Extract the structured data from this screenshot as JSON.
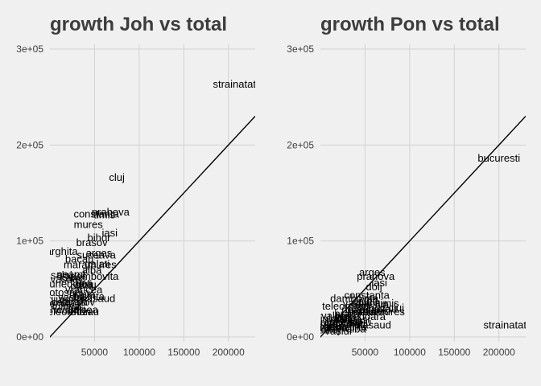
{
  "chart_data": [
    {
      "type": "scatter",
      "title": "growth Joh vs total",
      "xlabel": "",
      "ylabel": "",
      "xlim": [
        0,
        230000
      ],
      "ylim": [
        -5000,
        305000
      ],
      "x_ticks": [
        50000,
        100000,
        150000,
        200000
      ],
      "x_tick_labels": [
        "50000",
        "100000",
        "150000",
        "200000"
      ],
      "y_ticks": [
        0,
        100000,
        200000,
        300000
      ],
      "y_tick_labels": [
        "0e+00",
        "1e+05",
        "2e+05",
        "3e+05"
      ],
      "grid": true,
      "reference_line": "y = x",
      "points": [
        {
          "label": "strainatate",
          "x": 210000,
          "y": 263000
        },
        {
          "label": "cluj",
          "x": 75000,
          "y": 166000
        },
        {
          "label": "prahova",
          "x": 68000,
          "y": 130000
        },
        {
          "label": "constanta",
          "x": 52000,
          "y": 128000
        },
        {
          "label": "timis",
          "x": 61000,
          "y": 127000
        },
        {
          "label": "mures",
          "x": 43000,
          "y": 117000
        },
        {
          "label": "iasi",
          "x": 67000,
          "y": 108000
        },
        {
          "label": "bihor",
          "x": 55000,
          "y": 103000
        },
        {
          "label": "brasov",
          "x": 47000,
          "y": 98000
        },
        {
          "label": "harghita",
          "x": 10000,
          "y": 89000
        },
        {
          "label": "suceava",
          "x": 52000,
          "y": 85000
        },
        {
          "label": "arges",
          "x": 55000,
          "y": 87000
        },
        {
          "label": "bacau",
          "x": 33000,
          "y": 81000
        },
        {
          "label": "maramures",
          "x": 45000,
          "y": 75000
        },
        {
          "label": "galati",
          "x": 53000,
          "y": 76000
        },
        {
          "label": "alba",
          "x": 47000,
          "y": 69000
        },
        {
          "label": "dambovita",
          "x": 50000,
          "y": 63000
        },
        {
          "label": "salaj",
          "x": 13000,
          "y": 64000
        },
        {
          "label": "neamt",
          "x": 24000,
          "y": 65000
        },
        {
          "label": "caras",
          "x": 26000,
          "y": 61000
        },
        {
          "label": "covasna",
          "x": 10000,
          "y": 60000
        },
        {
          "label": "hunedoara",
          "x": 21000,
          "y": 55000
        },
        {
          "label": "olt",
          "x": 29000,
          "y": 53000
        },
        {
          "label": "dolj",
          "x": 38000,
          "y": 55000
        },
        {
          "label": "sibiu",
          "x": 40000,
          "y": 54000
        },
        {
          "label": "vrancea",
          "x": 38000,
          "y": 49000
        },
        {
          "label": "botosani",
          "x": 15000,
          "y": 46000
        },
        {
          "label": "braila",
          "x": 36000,
          "y": 44000
        },
        {
          "label": "bistrita",
          "x": 44000,
          "y": 42000
        },
        {
          "label": "nasaud",
          "x": 54000,
          "y": 40000
        },
        {
          "label": "vaslui",
          "x": 24000,
          "y": 41000
        },
        {
          "label": "giurgiu",
          "x": 15000,
          "y": 39000
        },
        {
          "label": "ilfov",
          "x": 40000,
          "y": 36000
        },
        {
          "label": "calarasi",
          "x": 22000,
          "y": 36000
        },
        {
          "label": "ialomita",
          "x": 8000,
          "y": 35000
        },
        {
          "label": "tulcea",
          "x": 18000,
          "y": 32000
        },
        {
          "label": "gorj",
          "x": 30000,
          "y": 29000
        },
        {
          "label": "mehedinti",
          "x": 10000,
          "y": 28000
        },
        {
          "label": "valcea",
          "x": 37000,
          "y": 28000
        },
        {
          "label": "teleorman",
          "x": 20000,
          "y": 26000
        },
        {
          "label": "buzau",
          "x": 39000,
          "y": 26000
        }
      ]
    },
    {
      "type": "scatter",
      "title": "growth Pon vs total",
      "xlabel": "",
      "ylabel": "",
      "xlim": [
        0,
        230000
      ],
      "ylim": [
        -5000,
        305000
      ],
      "x_ticks": [
        50000,
        100000,
        150000,
        200000
      ],
      "x_tick_labels": [
        "50000",
        "100000",
        "150000",
        "200000"
      ],
      "y_ticks": [
        0,
        100000,
        200000,
        300000
      ],
      "y_tick_labels": [
        "0e+00",
        "1e+05",
        "2e+05",
        "3e+05"
      ],
      "grid": true,
      "reference_line": "y = x",
      "points": [
        {
          "label": "bucuresti",
          "x": 200000,
          "y": 186000
        },
        {
          "label": "strainatate",
          "x": 210000,
          "y": 12000
        },
        {
          "label": "arges",
          "x": 58000,
          "y": 67000
        },
        {
          "label": "prahova",
          "x": 62000,
          "y": 63000
        },
        {
          "label": "iasi",
          "x": 66000,
          "y": 56000
        },
        {
          "label": "dolj",
          "x": 60000,
          "y": 52000
        },
        {
          "label": "constanta",
          "x": 52000,
          "y": 43000
        },
        {
          "label": "dambovita",
          "x": 38000,
          "y": 40000
        },
        {
          "label": "galati",
          "x": 50000,
          "y": 37000
        },
        {
          "label": "olt",
          "x": 58000,
          "y": 38000
        },
        {
          "label": "bacau",
          "x": 58000,
          "y": 35000
        },
        {
          "label": "timis",
          "x": 76000,
          "y": 35000
        },
        {
          "label": "vaslui",
          "x": 40000,
          "y": 35000
        },
        {
          "label": "suceava",
          "x": 55000,
          "y": 33000
        },
        {
          "label": "cluj",
          "x": 85000,
          "y": 30000
        },
        {
          "label": "buzau",
          "x": 70000,
          "y": 29000
        },
        {
          "label": "teleorman",
          "x": 28000,
          "y": 32000
        },
        {
          "label": "neamt",
          "x": 40000,
          "y": 28000
        },
        {
          "label": "botosani",
          "x": 50000,
          "y": 28000
        },
        {
          "label": "mures",
          "x": 60000,
          "y": 27000
        },
        {
          "label": "maramures",
          "x": 65000,
          "y": 26000
        },
        {
          "label": "brasov",
          "x": 48000,
          "y": 26000
        },
        {
          "label": "braila",
          "x": 30000,
          "y": 24000
        },
        {
          "label": "valcea",
          "x": 18000,
          "y": 22000
        },
        {
          "label": "gorj",
          "x": 25000,
          "y": 21000
        },
        {
          "label": "hunedoara",
          "x": 45000,
          "y": 21000
        },
        {
          "label": "ialomita",
          "x": 20000,
          "y": 19000
        },
        {
          "label": "calarasi",
          "x": 35000,
          "y": 18000
        },
        {
          "label": "giurgiu",
          "x": 28000,
          "y": 16000
        },
        {
          "label": "vrancea",
          "x": 15000,
          "y": 15000
        },
        {
          "label": "sibiu",
          "x": 45000,
          "y": 15000
        },
        {
          "label": "ilfov",
          "x": 15000,
          "y": 14000
        },
        {
          "label": "mehedinti",
          "x": 25000,
          "y": 13000
        },
        {
          "label": "bihor",
          "x": 35000,
          "y": 13000
        },
        {
          "label": "nasaud",
          "x": 60000,
          "y": 12000
        },
        {
          "label": "bistrita",
          "x": 35000,
          "y": 10000
        },
        {
          "label": "tulcea",
          "x": 15000,
          "y": 9000
        },
        {
          "label": "alba",
          "x": 40000,
          "y": 8000
        },
        {
          "label": "salaj",
          "x": 10000,
          "y": 7000
        },
        {
          "label": "vaslui",
          "x": 20000,
          "y": 6000
        },
        {
          "label": "caras",
          "x": 12000,
          "y": 11000
        },
        {
          "label": "covasna",
          "x": 8000,
          "y": 10000
        }
      ]
    }
  ]
}
